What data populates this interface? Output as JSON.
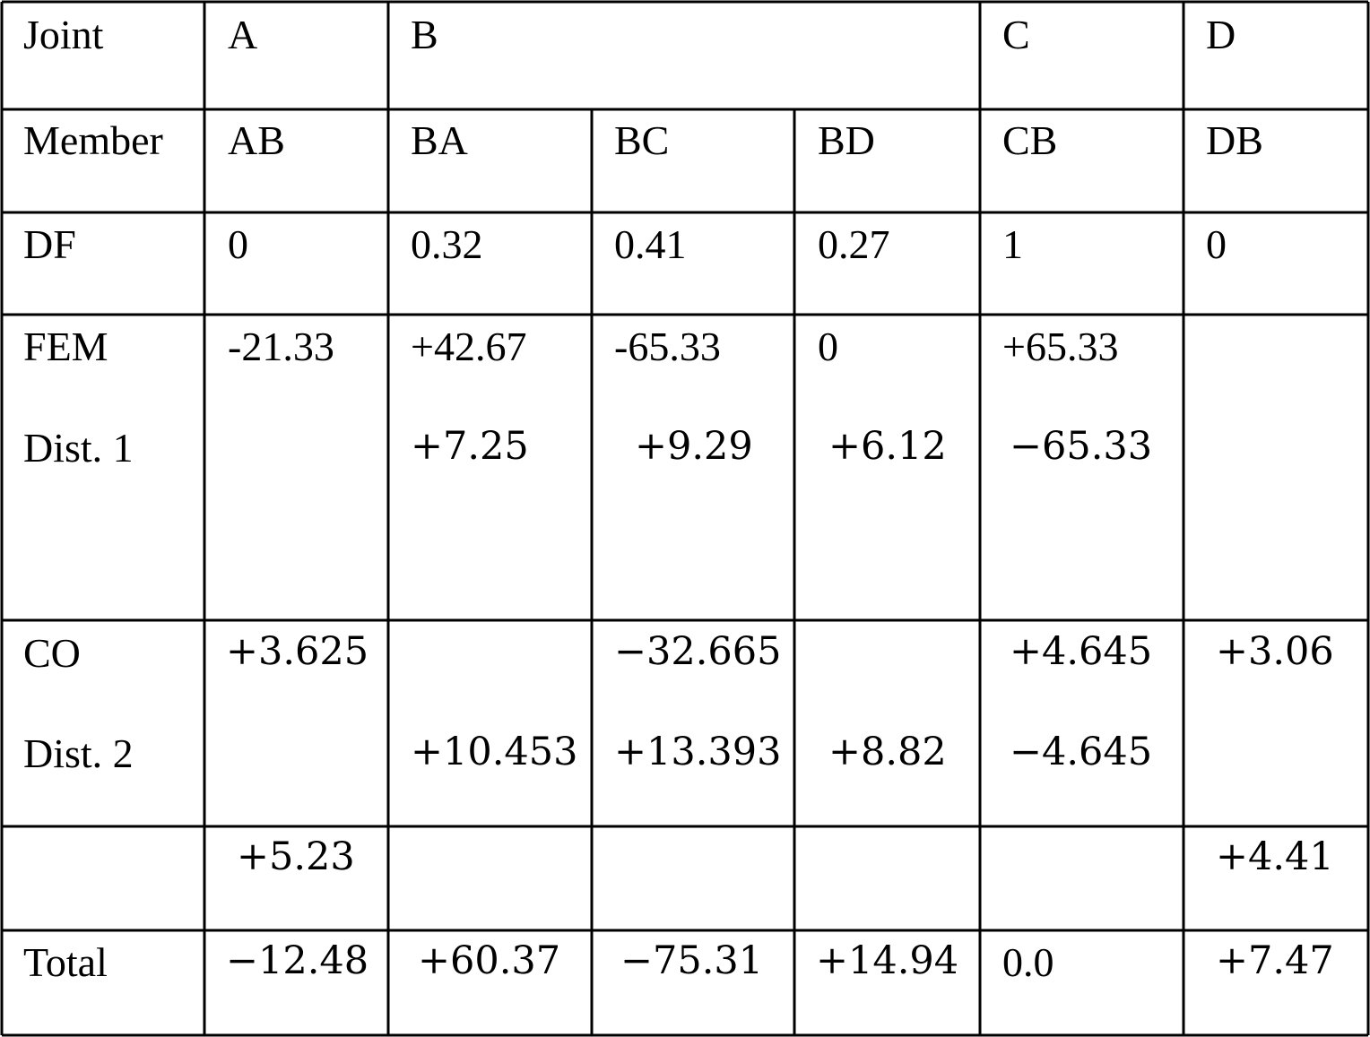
{
  "table": {
    "joint_row": {
      "label": "Joint",
      "A": "A",
      "B": "B",
      "C": "C",
      "D": "D"
    },
    "member_row": {
      "label": "Member",
      "AB": "AB",
      "BA": "BA",
      "BC": "BC",
      "BD": "BD",
      "CB": "CB",
      "DB": "DB"
    },
    "df_row": {
      "label": "DF",
      "AB": "0",
      "BA": "0.32",
      "BC": "0.41",
      "BD": "0.27",
      "CB": "1",
      "DB": "0"
    },
    "fem_row": {
      "label": "FEM",
      "AB": "-21.33",
      "BA": "+42.67",
      "BC": "-65.33",
      "BD": "0",
      "CB": "+65.33"
    },
    "dist1_row": {
      "label": "Dist. 1",
      "BA": "+7.25",
      "BC": "+9.29",
      "BD": "+6.12",
      "CB": "−65.33"
    },
    "co_row": {
      "label": "CO",
      "AB": "+3.625",
      "BC": "−32.665",
      "CB": "+4.645",
      "DB": "+3.06"
    },
    "dist2_row": {
      "label": "Dist. 2",
      "BA": "+10.453",
      "BC": "+13.393",
      "BD": "+8.82",
      "CB": "−4.645"
    },
    "co2_row": {
      "AB": "+5.23",
      "DB": "+4.41"
    },
    "total_row": {
      "label": "Total",
      "AB": "−12.48",
      "BA": "+60.37",
      "BC": "−75.31",
      "BD": "+14.94",
      "CB": "0.0",
      "DB": "+7.47"
    }
  }
}
